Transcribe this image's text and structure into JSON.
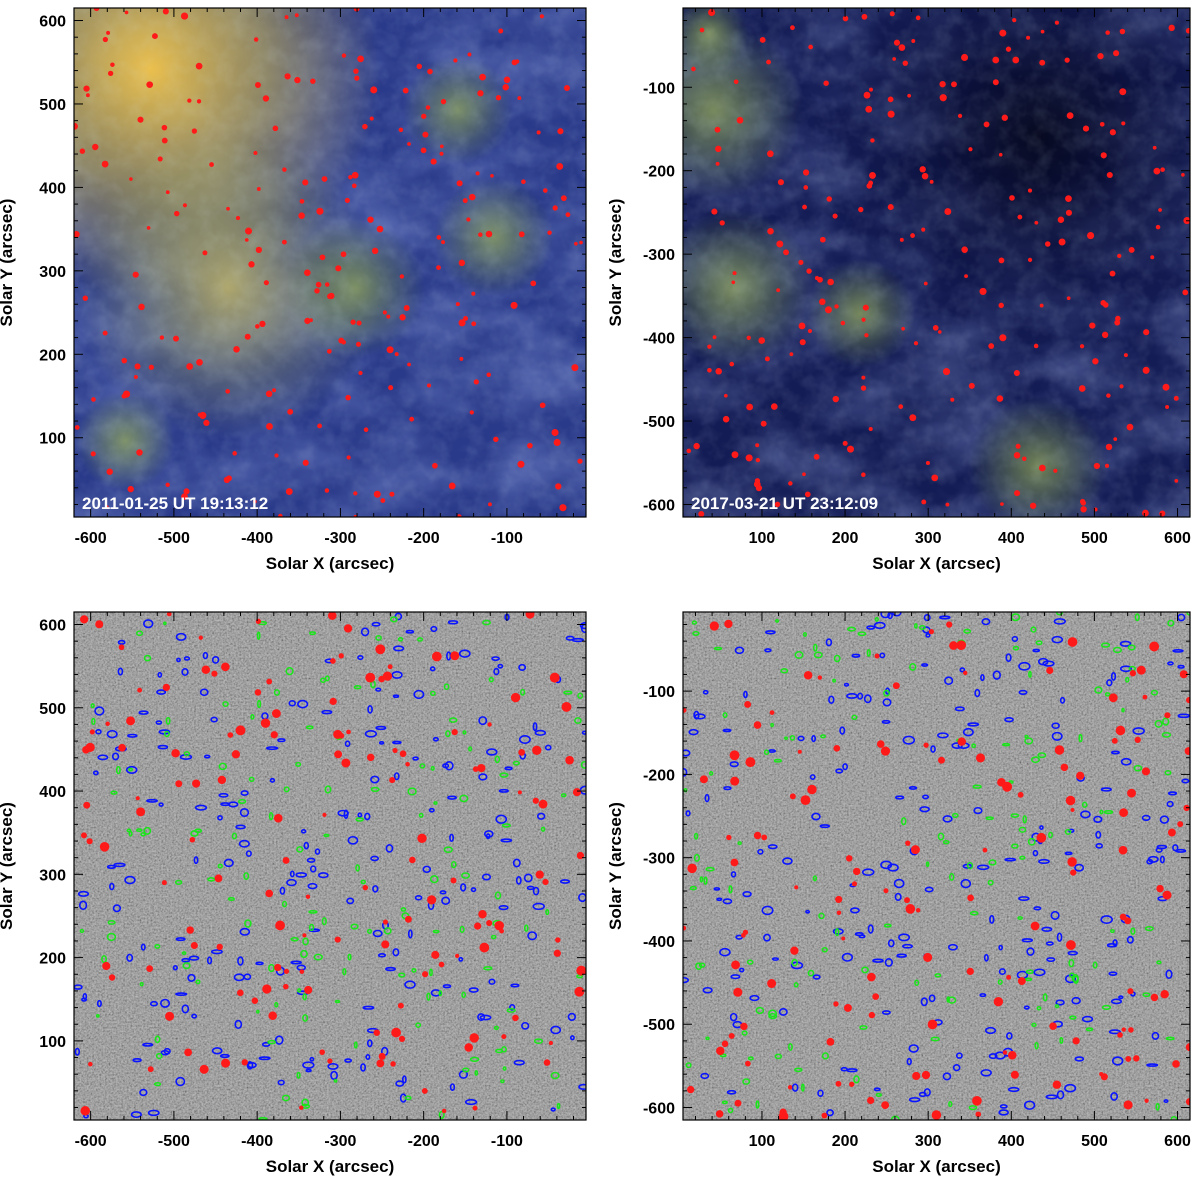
{
  "figure": {
    "panels": [
      {
        "id": "top-left",
        "kind": "euv-composite",
        "timestamp": "2011-01-25 UT 19:13:12",
        "xlabel": "Solar X (arcsec)",
        "ylabel": "Solar Y (arcsec)",
        "xlim": [
          -620,
          -5
        ],
        "ylim": [
          5,
          615
        ],
        "xticks": [
          -600,
          -500,
          -400,
          -300,
          -200,
          -100
        ],
        "yticks": [
          100,
          200,
          300,
          400,
          500,
          600
        ],
        "palette": {
          "base": "#2a3a8a",
          "bright": "#e8c84a",
          "green": "#6f8a3c",
          "marker": "#ff1a1a"
        }
      },
      {
        "id": "top-right",
        "kind": "euv-composite",
        "timestamp": "2017-03-21 UT 23:12:09",
        "xlabel": "Solar X (arcsec)",
        "ylabel": "Solar Y (arcsec)",
        "xlim": [
          5,
          615
        ],
        "ylim": [
          -615,
          -5
        ],
        "xticks": [
          100,
          200,
          300,
          400,
          500,
          600
        ],
        "yticks": [
          -100,
          -200,
          -300,
          -400,
          -500,
          -600
        ],
        "palette": {
          "base": "#141c55",
          "bright": "#c9c870",
          "green": "#5f7f48",
          "marker": "#ff1a1a"
        }
      },
      {
        "id": "bottom-left",
        "kind": "magnetogram",
        "timestamp": "",
        "xlabel": "Solar X (arcsec)",
        "ylabel": "Solar Y (arcsec)",
        "xlim": [
          -620,
          -5
        ],
        "ylim": [
          5,
          615
        ],
        "xticks": [
          -600,
          -500,
          -400,
          -300,
          -200,
          -100
        ],
        "yticks": [
          100,
          200,
          300,
          400,
          500,
          600
        ],
        "palette": {
          "base": "#8a8a8a",
          "contour_a": "#0a14ff",
          "contour_b": "#19e619",
          "marker": "#ff1a1a"
        }
      },
      {
        "id": "bottom-right",
        "kind": "magnetogram",
        "timestamp": "",
        "xlabel": "Solar X (arcsec)",
        "ylabel": "Solar Y (arcsec)",
        "xlim": [
          5,
          615
        ],
        "ylim": [
          -615,
          -5
        ],
        "xticks": [
          100,
          200,
          300,
          400,
          500,
          600
        ],
        "yticks": [
          -100,
          -200,
          -300,
          -400,
          -500,
          -600
        ],
        "palette": {
          "base": "#8a8a8a",
          "contour_a": "#0a14ff",
          "contour_b": "#19e619",
          "marker": "#ff1a1a"
        }
      }
    ]
  }
}
